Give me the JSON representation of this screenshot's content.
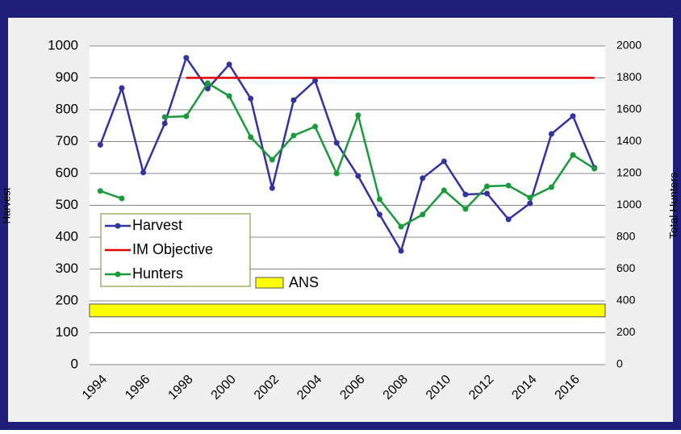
{
  "chart_data": {
    "type": "line",
    "categories": [
      "1994",
      null,
      "1996",
      null,
      "1998",
      null,
      "2000",
      null,
      "2002",
      null,
      "2004",
      null,
      "2006",
      null,
      "2008",
      null,
      "2010",
      null,
      "2012",
      null,
      "2014",
      null,
      "2016",
      null
    ],
    "series": [
      {
        "name": "Harvest",
        "color": "#3333a0",
        "axis": "y",
        "markers": true,
        "values": [
          690,
          868,
          603,
          757,
          963,
          866,
          942,
          835,
          554,
          830,
          891,
          696,
          592,
          471,
          357,
          585,
          638,
          534,
          537,
          456,
          506,
          724,
          780,
          618
        ]
      },
      {
        "name": "IM Objective",
        "color": "#e00000",
        "axis": "y",
        "markers": false,
        "values": [
          null,
          null,
          null,
          null,
          900,
          900,
          900,
          900,
          900,
          900,
          900,
          900,
          900,
          900,
          900,
          900,
          900,
          900,
          900,
          900,
          900,
          900,
          900,
          900
        ]
      },
      {
        "name": "Hunters",
        "color": "#1a9a3a",
        "axis": "y2",
        "markers": true,
        "values": [
          1090,
          1043,
          null,
          1554,
          1559,
          1767,
          1686,
          1428,
          1286,
          1438,
          1494,
          1200,
          1565,
          1038,
          866,
          942,
          1094,
          977,
          1119,
          1124,
          1048,
          1114,
          1316,
          1230
        ]
      }
    ],
    "band": {
      "name": "ANS",
      "range": [
        150,
        190
      ],
      "color": "#ffff00"
    },
    "ylabel": "Harvest",
    "y2label": "Total Hunters",
    "ylim": [
      0,
      1000
    ],
    "yticks": [
      0,
      100,
      200,
      300,
      400,
      500,
      600,
      700,
      800,
      900,
      1000
    ],
    "y2lim": [
      0,
      2000
    ],
    "y2ticks": [
      0,
      200,
      400,
      600,
      800,
      1000,
      1200,
      1400,
      1600,
      1800,
      2000
    ],
    "grid": true
  }
}
